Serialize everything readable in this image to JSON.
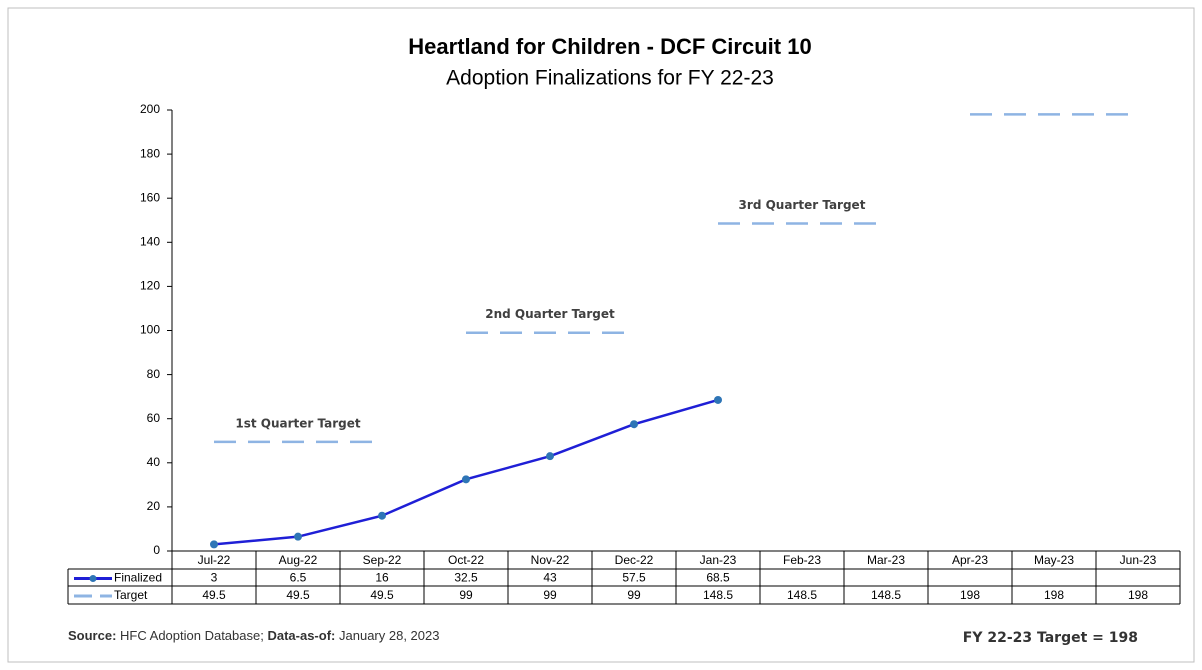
{
  "chart_data": {
    "type": "line",
    "title": "Heartland for Children - DCF Circuit 10",
    "subtitle": "Adoption Finalizations for FY 22-23",
    "categories": [
      "Jul-22",
      "Aug-22",
      "Sep-22",
      "Oct-22",
      "Nov-22",
      "Dec-22",
      "Jan-23",
      "Feb-23",
      "Mar-23",
      "Apr-23",
      "May-23",
      "Jun-23"
    ],
    "series": [
      {
        "name": "Finalized",
        "color": "#1f1fd6",
        "values": [
          3,
          6.5,
          16,
          32.5,
          43,
          57.5,
          68.5,
          null,
          null,
          null,
          null,
          null
        ]
      },
      {
        "name": "Target",
        "color": "#8eb4e3",
        "dashed": true,
        "values": [
          49.5,
          49.5,
          49.5,
          99,
          99,
          99,
          148.5,
          148.5,
          148.5,
          198,
          198,
          198
        ]
      }
    ],
    "annotations": [
      "1st Quarter Target",
      "2nd Quarter Target",
      "3rd Quarter Target"
    ],
    "ylim": [
      0,
      200
    ],
    "yticks": [
      0,
      20,
      40,
      60,
      80,
      100,
      120,
      140,
      160,
      180,
      200
    ],
    "data_table": true,
    "footer": {
      "source_label": "Source:",
      "source": "HFC Adoption Database;",
      "asof_label": "Data-as-of:",
      "asof": "January 28, 2023",
      "target_note": "FY 22-23 Target = 198"
    }
  }
}
